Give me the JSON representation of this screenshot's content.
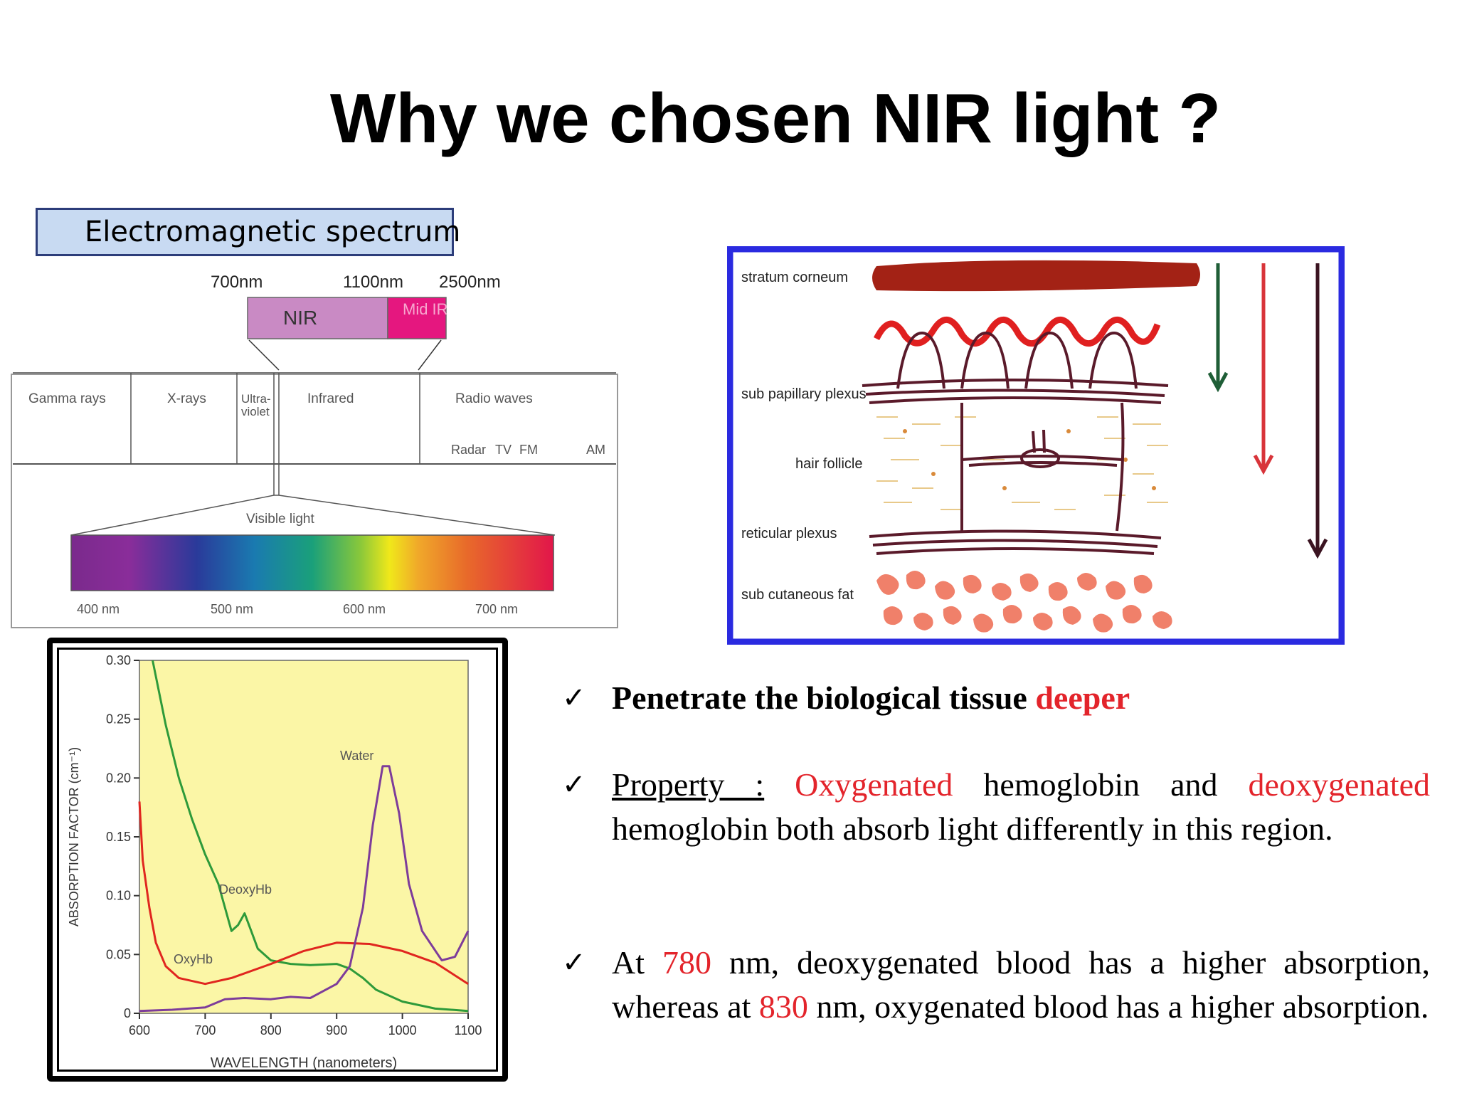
{
  "title": "Why we chosen NIR light ?",
  "em_box_label": "Electromagnetic spectrum",
  "spectrum": {
    "nir_ticks": [
      "700nm",
      "1100nm",
      "2500nm"
    ],
    "nir_label": "NIR",
    "mid_ir_label": "Mid IR",
    "bands": [
      "Gamma rays",
      "X-rays",
      "Ultra-violet",
      "Infrared",
      "Radio waves"
    ],
    "radio_sub": [
      "Radar",
      "TV",
      "FM",
      "AM"
    ],
    "visible_label": "Visible light",
    "visible_ticks": [
      "400 nm",
      "500 nm",
      "600 nm",
      "700 nm"
    ],
    "colors": {
      "nir": "#c98ac4",
      "mid_ir": "#e5177f"
    }
  },
  "skin": {
    "layers": [
      "stratum corneum",
      "sub papillary plexus",
      "hair follicle",
      "reticular plexus",
      "sub cutaneous fat"
    ],
    "arrow_colors": [
      "#1f5e37",
      "#d8343a",
      "#3b1421"
    ],
    "border_color": "#2a2ae0"
  },
  "chart_data": {
    "type": "line",
    "xlabel": "WAVELENGTH (nanometers)",
    "ylabel": "ABSORPTION FACTOR (cm⁻¹)",
    "xlim": [
      600,
      1100
    ],
    "ylim": [
      0,
      0.3
    ],
    "x_ticks": [
      "600",
      "700",
      "800",
      "900",
      "1000",
      "1100"
    ],
    "y_ticks": [
      "0",
      "0.05",
      "0.10",
      "0.15",
      "0.20",
      "0.25",
      "0.30"
    ],
    "series": [
      {
        "name": "DeoxyHb",
        "color": "#2e9a3a",
        "x": [
          620,
          640,
          660,
          680,
          700,
          720,
          740,
          750,
          760,
          770,
          780,
          800,
          830,
          860,
          900,
          920,
          940,
          960,
          1000,
          1050,
          1100
        ],
        "y": [
          0.3,
          0.245,
          0.2,
          0.165,
          0.135,
          0.11,
          0.07,
          0.075,
          0.085,
          0.07,
          0.055,
          0.045,
          0.042,
          0.041,
          0.042,
          0.038,
          0.03,
          0.02,
          0.01,
          0.004,
          0.002
        ]
      },
      {
        "name": "OxyHb",
        "color": "#e0261f",
        "x": [
          600,
          605,
          615,
          625,
          640,
          660,
          700,
          740,
          800,
          850,
          900,
          950,
          1000,
          1050,
          1100
        ],
        "y": [
          0.18,
          0.13,
          0.09,
          0.06,
          0.04,
          0.03,
          0.025,
          0.03,
          0.042,
          0.053,
          0.06,
          0.059,
          0.053,
          0.043,
          0.025
        ]
      },
      {
        "name": "Water",
        "color": "#7d3c9a",
        "x": [
          600,
          650,
          700,
          730,
          760,
          800,
          830,
          860,
          900,
          920,
          940,
          955,
          970,
          980,
          995,
          1010,
          1030,
          1060,
          1080,
          1100
        ],
        "y": [
          0.002,
          0.003,
          0.005,
          0.012,
          0.013,
          0.012,
          0.014,
          0.013,
          0.025,
          0.04,
          0.09,
          0.16,
          0.21,
          0.21,
          0.17,
          0.11,
          0.07,
          0.045,
          0.048,
          0.07
        ]
      }
    ]
  },
  "bullets": {
    "check": "✓",
    "b1": {
      "text": "Penetrate the biological tissue ",
      "red": "deeper"
    },
    "b2": {
      "lead": "Property :",
      "red1": " Oxygenated",
      "mid": " hemoglobin and ",
      "red2": "deoxygenated",
      "rest": " hemoglobin both absorb light differently in this region."
    },
    "b3": {
      "t1": "At ",
      "r1": "780",
      "t2": " nm, deoxygenated blood has a higher absorption, whereas at ",
      "r2": "830",
      "t3": " nm, oxygenated blood has a higher absorption."
    }
  }
}
